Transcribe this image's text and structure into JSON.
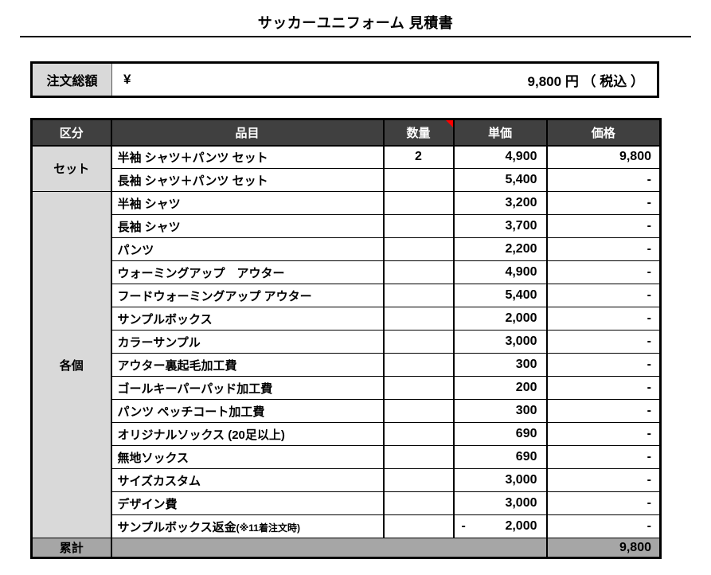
{
  "title": "サッカーユニフォーム 見積書",
  "total_box": {
    "label": "注文総額",
    "currency": "¥",
    "amount": "9,800",
    "suffix": "円 （ 税込 ）"
  },
  "table": {
    "headers": [
      "区分",
      "品目",
      "数量",
      "単価",
      "価格"
    ],
    "qty_header_comment_marker": "red-corner-flag",
    "groups": [
      {
        "label": "セット",
        "rows": [
          {
            "item": "半袖 シャツ＋パンツ セット",
            "qty": "2",
            "unit": "4,900",
            "price": "9,800"
          },
          {
            "item": "長袖 シャツ＋パンツ セット",
            "qty": "",
            "unit": "5,400",
            "price": "-"
          }
        ]
      },
      {
        "label": "各個",
        "rows": [
          {
            "item": "半袖 シャツ",
            "qty": "",
            "unit": "3,200",
            "price": "-"
          },
          {
            "item": "長袖 シャツ",
            "qty": "",
            "unit": "3,700",
            "price": "-"
          },
          {
            "item": "パンツ",
            "qty": "",
            "unit": "2,200",
            "price": "-"
          },
          {
            "item": "ウォーミングアップ　アウター",
            "qty": "",
            "unit": "4,900",
            "price": "-"
          },
          {
            "item": "フードウォーミングアップ アウター",
            "qty": "",
            "unit": "5,400",
            "price": "-"
          },
          {
            "item": "サンプルボックス",
            "qty": "",
            "unit": "2,000",
            "price": "-"
          },
          {
            "item": "カラーサンプル",
            "qty": "",
            "unit": "3,000",
            "price": "-"
          },
          {
            "item": "アウター裏起毛加工費",
            "qty": "",
            "unit": "300",
            "price": "-"
          },
          {
            "item": "ゴールキーパーパッド加工費",
            "qty": "",
            "unit": "200",
            "price": "-"
          },
          {
            "item": "パンツ ペッチコート加工費",
            "qty": "",
            "unit": "300",
            "price": "-"
          },
          {
            "item": "オリジナルソックス (20足以上)",
            "qty": "",
            "unit": "690",
            "price": "-"
          },
          {
            "item": "無地ソックス",
            "qty": "",
            "unit": "690",
            "price": "-"
          },
          {
            "item": "サイズカスタム",
            "qty": "",
            "unit": "3,000",
            "price": "-"
          },
          {
            "item": "デザイン費",
            "qty": "",
            "unit": "3,000",
            "price": "-"
          },
          {
            "item": "サンプルボックス返金",
            "item_note": "(※11着注文時)",
            "qty": "",
            "unit_sign": "-",
            "unit": "2,000",
            "price": "-"
          }
        ]
      }
    ],
    "footer": {
      "label": "累計",
      "total": "9,800"
    }
  },
  "colors": {
    "header_bg": "#404040",
    "header_text": "#ffffff",
    "group_bg": "#d9d9d9",
    "footer_bg": "#a6a6a6",
    "border": "#000000",
    "comment_flag": "#ff0000"
  }
}
